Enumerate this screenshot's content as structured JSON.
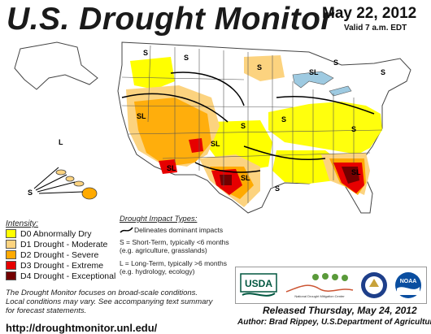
{
  "header": {
    "title": "U.S. Drought Monitor",
    "date": "May 22, 2012",
    "valid": "Valid 7 a.m. EDT"
  },
  "legend": {
    "title": "Intensity:",
    "items": [
      {
        "label": "D0 Abnormally Dry",
        "color": "#ffff00"
      },
      {
        "label": "D1 Drought - Moderate",
        "color": "#fcd37f"
      },
      {
        "label": "D2 Drought - Severe",
        "color": "#ffaa00"
      },
      {
        "label": "D3 Drought - Extreme",
        "color": "#e60000"
      },
      {
        "label": "D4 Drought - Exceptional",
        "color": "#730000"
      }
    ]
  },
  "impacts": {
    "title": "Drought Impact Types:",
    "delineates": "Delineates dominant impacts",
    "short_term_1": "S = Short-Term, typically <6 months",
    "short_term_2": "(e.g. agriculture, grasslands)",
    "long_term_1": "L = Long-Term, typically >6 months",
    "long_term_2": "(e.g. hydrology, ecology)"
  },
  "map_labels": {
    "s": "S",
    "l": "L",
    "sl": "SL"
  },
  "note": {
    "line1": "The Drought Monitor focuses on broad-scale conditions.",
    "line2": "Local conditions may vary. See accompanying text summary",
    "line3": "for forecast statements."
  },
  "footer": {
    "url": "http://droughtmonitor.unl.edu/",
    "released": "Released Thursday, May 24, 2012",
    "author": "Author: Brad Rippey, U.S.Department of Agriculture"
  },
  "logos": {
    "usda": "USDA",
    "ndmc": "National Drought Mitigation Center",
    "noaa": "NOAA"
  },
  "colors": {
    "water": "#9ecae1",
    "state_line": "#444444",
    "land": "#ffffff"
  }
}
